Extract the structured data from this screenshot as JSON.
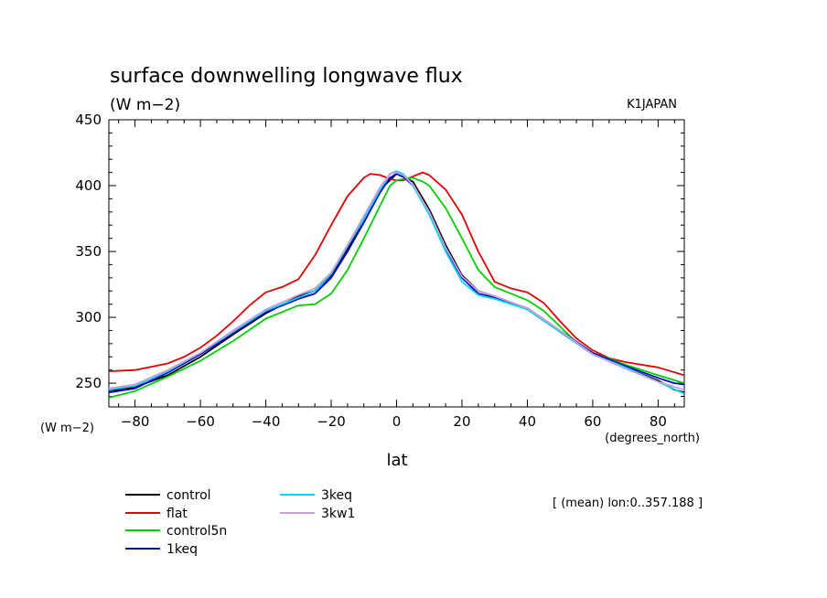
{
  "chart_data": {
    "type": "line",
    "title": "surface downwelling longwave flux",
    "units_label": "(W m−2)",
    "source_label": "K1JAPAN",
    "y_axis_unit": "(W m−2)",
    "x_axis_unit": "(degrees_north)",
    "xlabel": "lat",
    "averaging_note": "[ (mean) lon:0..357.188 ]",
    "xlim": [
      -88,
      88
    ],
    "ylim": [
      232,
      450
    ],
    "x_ticks": [
      -80,
      -60,
      -40,
      -20,
      0,
      20,
      40,
      60,
      80
    ],
    "y_ticks": [
      250,
      300,
      350,
      400,
      450
    ],
    "series": [
      {
        "name": "control",
        "color": "#000000",
        "x": [
          -88,
          -80,
          -70,
          -60,
          -50,
          -40,
          -30,
          -25,
          -20,
          -15,
          -10,
          -5,
          0,
          5,
          10,
          15,
          20,
          25,
          30,
          40,
          50,
          60,
          70,
          80,
          85,
          88
        ],
        "y": [
          244,
          247,
          256,
          270,
          287,
          303,
          316,
          320,
          332,
          352,
          375,
          397,
          409,
          403,
          382,
          355,
          332,
          320,
          316,
          306,
          289,
          272,
          262,
          252,
          245,
          243
        ]
      },
      {
        "name": "flat",
        "color": "#e00000",
        "x": [
          -88,
          -80,
          -70,
          -65,
          -60,
          -55,
          -50,
          -45,
          -40,
          -35,
          -30,
          -25,
          -20,
          -15,
          -10,
          -8,
          -5,
          -2,
          0,
          2,
          5,
          8,
          10,
          15,
          20,
          25,
          30,
          35,
          40,
          45,
          50,
          55,
          60,
          65,
          70,
          80,
          88
        ],
        "y": [
          259,
          260,
          265,
          270,
          277,
          286,
          297,
          309,
          319,
          323,
          329,
          347,
          370,
          392,
          406,
          409,
          408,
          405,
          404,
          404,
          407,
          410,
          408,
          397,
          378,
          350,
          327,
          322,
          319,
          311,
          297,
          284,
          275,
          269,
          266,
          262,
          256
        ]
      },
      {
        "name": "control5n",
        "color": "#00d000",
        "x": [
          -88,
          -80,
          -70,
          -60,
          -50,
          -40,
          -30,
          -25,
          -20,
          -15,
          -10,
          -5,
          -2,
          0,
          2,
          5,
          8,
          10,
          15,
          20,
          25,
          30,
          35,
          40,
          45,
          50,
          55,
          60,
          70,
          80,
          88
        ],
        "y": [
          239,
          244,
          255,
          267,
          282,
          299,
          309,
          310,
          318,
          336,
          360,
          385,
          400,
          404,
          405,
          406,
          403,
          400,
          383,
          360,
          336,
          323,
          318,
          313,
          305,
          293,
          281,
          273,
          264,
          256,
          250
        ]
      },
      {
        "name": "1keq",
        "color": "#0000cc",
        "x": [
          -88,
          -80,
          -70,
          -60,
          -50,
          -40,
          -30,
          -25,
          -20,
          -15,
          -10,
          -5,
          -2,
          0,
          2,
          5,
          10,
          15,
          20,
          25,
          30,
          40,
          50,
          60,
          70,
          80,
          85,
          88
        ],
        "y": [
          243,
          246,
          258,
          272,
          288,
          304,
          314,
          318,
          330,
          350,
          372,
          395,
          406,
          409,
          407,
          400,
          380,
          352,
          330,
          318,
          315,
          307,
          290,
          273,
          263,
          254,
          250,
          249
        ]
      },
      {
        "name": "3keq",
        "color": "#00d8ee",
        "x": [
          -88,
          -80,
          -70,
          -60,
          -50,
          -40,
          -30,
          -25,
          -20,
          -15,
          -10,
          -5,
          -2,
          0,
          2,
          5,
          10,
          15,
          20,
          25,
          30,
          40,
          50,
          60,
          70,
          80,
          88
        ],
        "y": [
          245,
          248,
          259,
          273,
          289,
          305,
          315,
          320,
          333,
          354,
          375,
          397,
          409,
          411,
          409,
          400,
          378,
          350,
          327,
          317,
          314,
          306,
          289,
          272,
          262,
          251,
          242
        ]
      },
      {
        "name": "3kw1",
        "color": "#c8a0d8",
        "x": [
          -88,
          -80,
          -70,
          -60,
          -50,
          -40,
          -30,
          -25,
          -20,
          -15,
          -10,
          -5,
          -2,
          0,
          2,
          5,
          10,
          15,
          20,
          25,
          30,
          40,
          50,
          60,
          70,
          80,
          88
        ],
        "y": [
          246,
          249,
          260,
          273,
          290,
          306,
          317,
          322,
          334,
          355,
          377,
          399,
          409,
          410,
          408,
          401,
          380,
          353,
          331,
          320,
          316,
          307,
          290,
          272,
          261,
          251,
          245
        ]
      }
    ]
  }
}
